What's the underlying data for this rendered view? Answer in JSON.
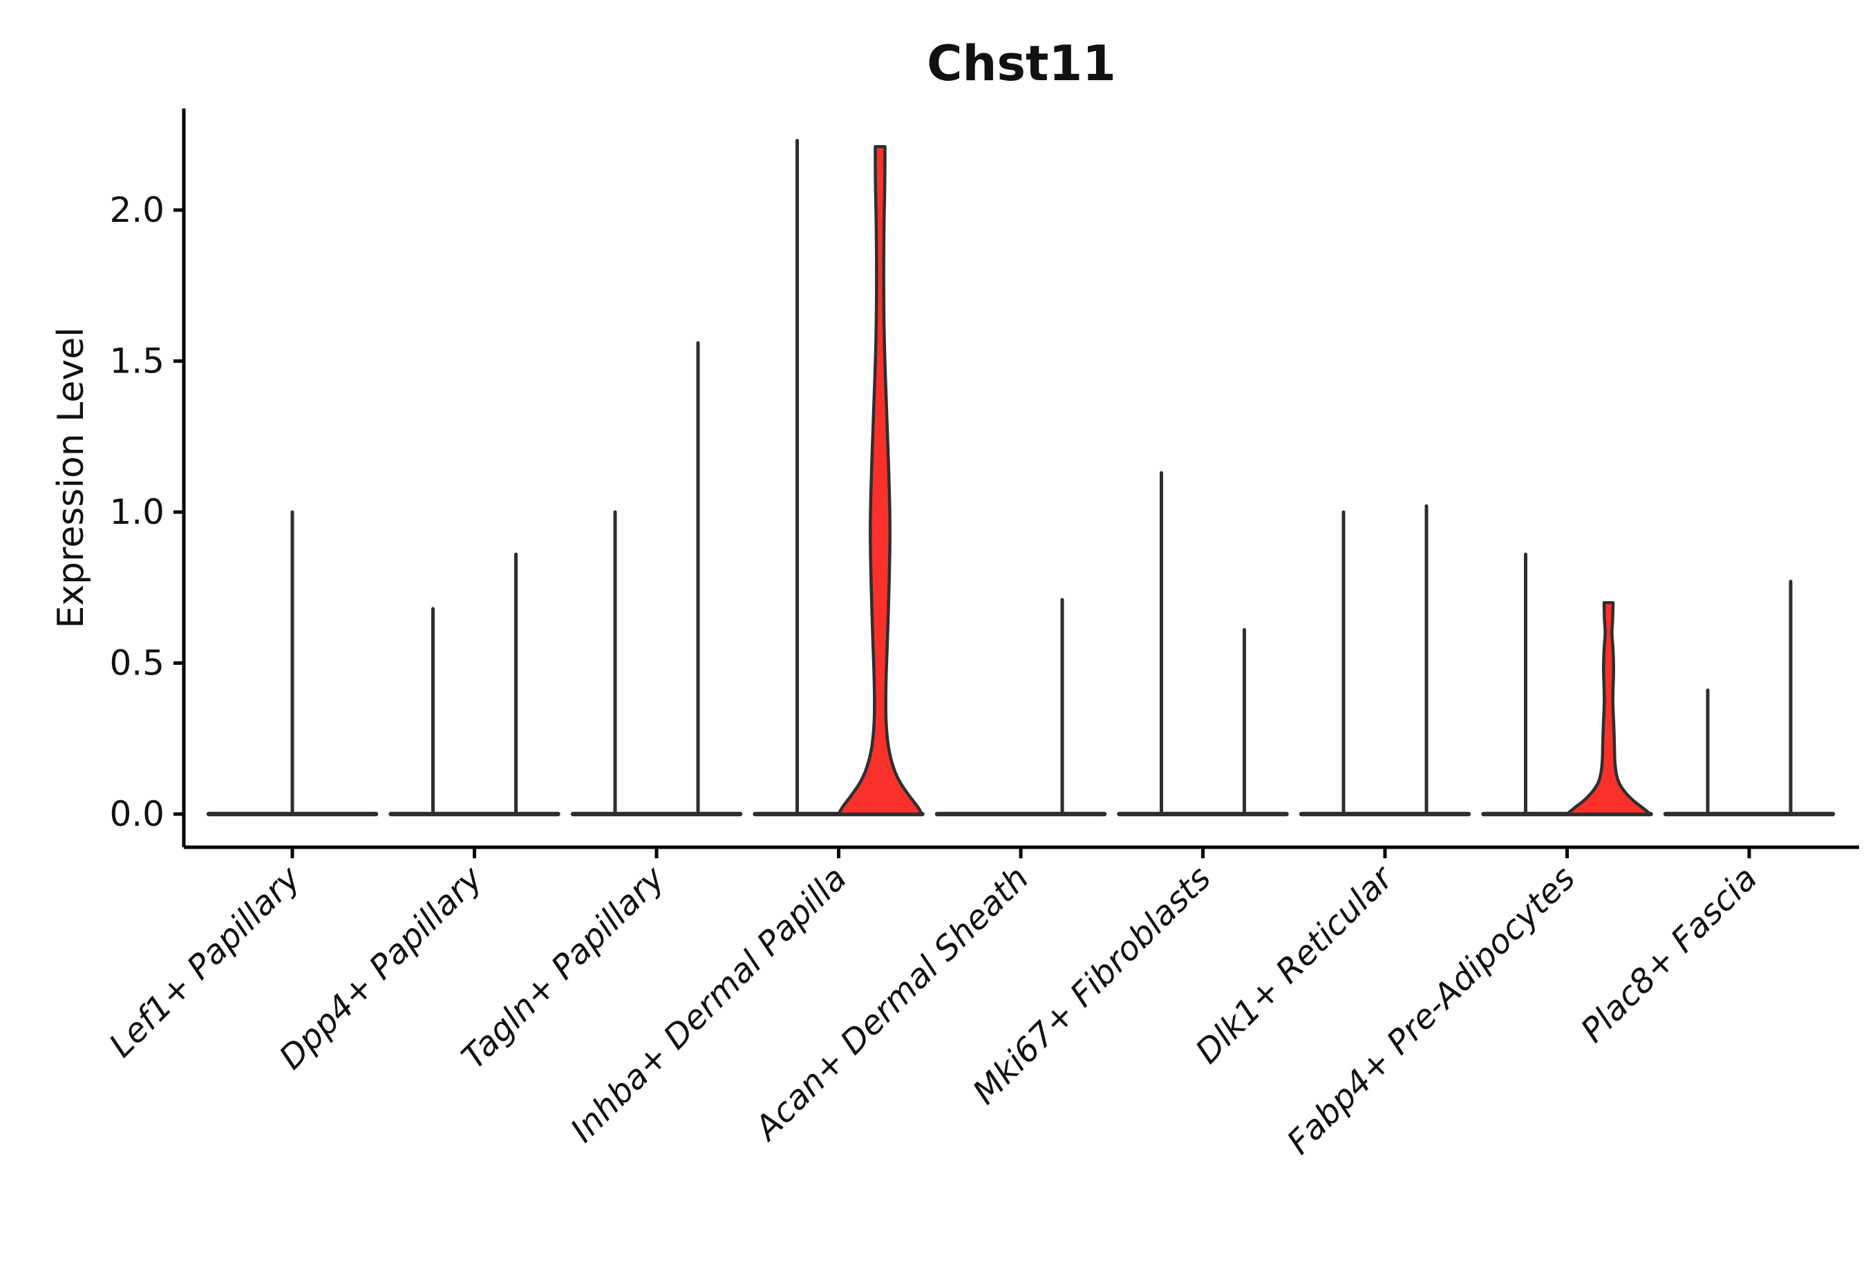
{
  "colors": {
    "background": "#ffffff",
    "axis": "#000000",
    "text": "#111111",
    "violin_stroke": "#2e2e2e",
    "accent_fill": "#fa312b"
  },
  "chart_data": {
    "type": "violin",
    "title": "Chst11",
    "xlabel": "",
    "ylabel": "Expression Level",
    "ylim": [
      0,
      2.35
    ],
    "grid": false,
    "legend_position": "none",
    "ytick_labels": [
      "0.0",
      "0.5",
      "1.0",
      "1.5",
      "2.0"
    ],
    "ytick_values": [
      0,
      0.5,
      1,
      1.5,
      2
    ],
    "categories": [
      "Lef1+ Papillary",
      "Dpp4+ Papillary",
      "Tagln+ Papillary",
      "Inhba+ Dermal Papilla",
      "Acan+ Dermal Sheath",
      "Mki67+ Fibroblasts",
      "Dlk1+ Reticular",
      "Fabp4+ Pre-Adipocytes",
      "Plac8+ Fascia"
    ],
    "violins": [
      {
        "category": "Lef1+ Papillary",
        "items": [
          {
            "slot": "center",
            "max": 1.0,
            "shape": "needle"
          }
        ]
      },
      {
        "category": "Dpp4+ Papillary",
        "items": [
          {
            "slot": "left",
            "max": 0.68,
            "shape": "needle"
          },
          {
            "slot": "right",
            "max": 0.86,
            "shape": "needle"
          }
        ]
      },
      {
        "category": "Tagln+ Papillary",
        "items": [
          {
            "slot": "left",
            "max": 1.0,
            "shape": "needle"
          },
          {
            "slot": "right",
            "max": 1.56,
            "shape": "needle"
          }
        ]
      },
      {
        "category": "Inhba+ Dermal Papilla",
        "items": [
          {
            "slot": "left",
            "max": 2.23,
            "shape": "needle"
          },
          {
            "slot": "right",
            "max": 2.21,
            "shape": "filled",
            "profile": [
              [
                2.21,
                7
              ],
              [
                2.1,
                7
              ],
              [
                1.95,
                5.5
              ],
              [
                1.75,
                5
              ],
              [
                1.55,
                6
              ],
              [
                1.3,
                10
              ],
              [
                1.1,
                13
              ],
              [
                0.95,
                14.5
              ],
              [
                0.8,
                13.5
              ],
              [
                0.6,
                11
              ],
              [
                0.45,
                8.5
              ],
              [
                0.35,
                8
              ],
              [
                0.28,
                9
              ],
              [
                0.2,
                13
              ],
              [
                0.12,
                24
              ],
              [
                0.06,
                42
              ],
              [
                0.02,
                56
              ],
              [
                0,
                60
              ]
            ]
          }
        ]
      },
      {
        "category": "Acan+ Dermal Sheath",
        "items": [
          {
            "slot": "right",
            "max": 0.71,
            "shape": "needle"
          }
        ]
      },
      {
        "category": "Mki67+ Fibroblasts",
        "items": [
          {
            "slot": "left",
            "max": 1.13,
            "shape": "needle"
          },
          {
            "slot": "right",
            "max": 0.61,
            "shape": "needle"
          }
        ]
      },
      {
        "category": "Dlk1+ Reticular",
        "items": [
          {
            "slot": "left",
            "max": 1.0,
            "shape": "needle"
          },
          {
            "slot": "right",
            "max": 1.02,
            "shape": "needle"
          }
        ]
      },
      {
        "category": "Fabp4+ Pre-Adipocytes",
        "items": [
          {
            "slot": "left",
            "max": 0.86,
            "shape": "needle"
          },
          {
            "slot": "right",
            "max": 0.7,
            "shape": "filled",
            "profile": [
              [
                0.7,
                6.5
              ],
              [
                0.64,
                6
              ],
              [
                0.6,
                4.5
              ],
              [
                0.55,
                6.5
              ],
              [
                0.48,
                7.5
              ],
              [
                0.42,
                6.5
              ],
              [
                0.37,
                6
              ],
              [
                0.3,
                7.5
              ],
              [
                0.23,
                8.5
              ],
              [
                0.16,
                9
              ],
              [
                0.1,
                14
              ],
              [
                0.05,
                32
              ],
              [
                0.02,
                50
              ],
              [
                0,
                60
              ]
            ]
          }
        ]
      },
      {
        "category": "Plac8+ Fascia",
        "items": [
          {
            "slot": "left",
            "max": 0.41,
            "shape": "needle"
          },
          {
            "slot": "right",
            "max": 0.77,
            "shape": "needle"
          }
        ]
      }
    ]
  }
}
